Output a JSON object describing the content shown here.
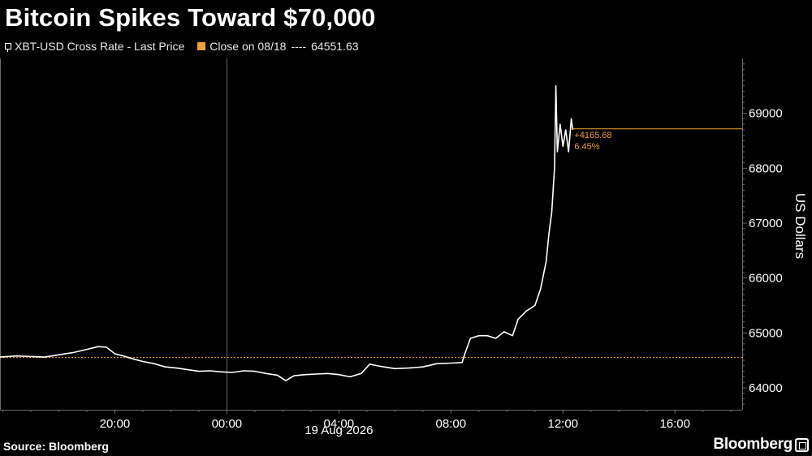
{
  "title": "Bitcoin Spikes Toward $70,000",
  "legend": {
    "series_label": "XBT-USD Cross Rate - Last Price",
    "close_label": "Close on 08/18",
    "close_dashes": "----",
    "close_value": "64551.63"
  },
  "source": "Source: Bloomberg",
  "brand": "Bloomberg",
  "colors": {
    "background": "#000000",
    "line": "#ffffff",
    "accent": "#f0a030",
    "grid": "#6a6a6a"
  },
  "chart_data": {
    "type": "line",
    "title": "Bitcoin Spikes Toward $70,000",
    "ylabel": "US Dollars",
    "xlabel": "19 Aug 2026",
    "x_unit": "hours relative to 00:00 on 19 Aug 2026",
    "x_ticks": [
      {
        "value": -4,
        "label": "20:00"
      },
      {
        "value": 0,
        "label": "00:00"
      },
      {
        "value": 4,
        "label": "04:00"
      },
      {
        "value": 8,
        "label": "08:00"
      },
      {
        "value": 12,
        "label": "12:00"
      },
      {
        "value": 16,
        "label": "16:00"
      }
    ],
    "y_ticks": [
      64000,
      65000,
      66000,
      67000,
      68000,
      69000
    ],
    "xlim": [
      -8.1,
      18.4
    ],
    "ylim": [
      63600,
      70000
    ],
    "grid": "vertical at 00:00",
    "reference_line": {
      "value": 64551.63,
      "label": "Close on 08/18"
    },
    "annotation": {
      "change": "+4165.68",
      "percent": "6.45%",
      "level": 68717
    },
    "series": [
      {
        "name": "XBT-USD Cross Rate - Last Price",
        "points": [
          [
            -8.1,
            64560
          ],
          [
            -7.5,
            64580
          ],
          [
            -7.0,
            64570
          ],
          [
            -6.5,
            64560
          ],
          [
            -6.0,
            64600
          ],
          [
            -5.5,
            64640
          ],
          [
            -5.0,
            64700
          ],
          [
            -4.6,
            64750
          ],
          [
            -4.3,
            64740
          ],
          [
            -4.0,
            64620
          ],
          [
            -3.7,
            64580
          ],
          [
            -3.3,
            64520
          ],
          [
            -3.0,
            64480
          ],
          [
            -2.6,
            64440
          ],
          [
            -2.2,
            64380
          ],
          [
            -1.8,
            64360
          ],
          [
            -1.4,
            64330
          ],
          [
            -1.0,
            64300
          ],
          [
            -0.6,
            64310
          ],
          [
            -0.2,
            64290
          ],
          [
            0.2,
            64280
          ],
          [
            0.6,
            64310
          ],
          [
            1.0,
            64300
          ],
          [
            1.4,
            64260
          ],
          [
            1.8,
            64230
          ],
          [
            2.1,
            64130
          ],
          [
            2.4,
            64220
          ],
          [
            2.8,
            64240
          ],
          [
            3.2,
            64250
          ],
          [
            3.6,
            64260
          ],
          [
            4.0,
            64240
          ],
          [
            4.4,
            64200
          ],
          [
            4.8,
            64260
          ],
          [
            5.1,
            64430
          ],
          [
            5.5,
            64390
          ],
          [
            6.0,
            64350
          ],
          [
            6.5,
            64360
          ],
          [
            7.0,
            64380
          ],
          [
            7.5,
            64440
          ],
          [
            8.0,
            64450
          ],
          [
            8.4,
            64460
          ],
          [
            8.5,
            64620
          ],
          [
            8.7,
            64900
          ],
          [
            9.0,
            64950
          ],
          [
            9.3,
            64950
          ],
          [
            9.6,
            64900
          ],
          [
            9.9,
            65020
          ],
          [
            10.2,
            64950
          ],
          [
            10.4,
            65250
          ],
          [
            10.7,
            65400
          ],
          [
            11.0,
            65500
          ],
          [
            11.2,
            65800
          ],
          [
            11.4,
            66300
          ],
          [
            11.5,
            66800
          ],
          [
            11.6,
            67200
          ],
          [
            11.7,
            68000
          ],
          [
            11.75,
            69500
          ],
          [
            11.8,
            68300
          ],
          [
            11.9,
            68800
          ],
          [
            12.0,
            68400
          ],
          [
            12.1,
            68700
          ],
          [
            12.2,
            68300
          ],
          [
            12.3,
            68900
          ],
          [
            12.35,
            68700
          ]
        ]
      }
    ]
  }
}
